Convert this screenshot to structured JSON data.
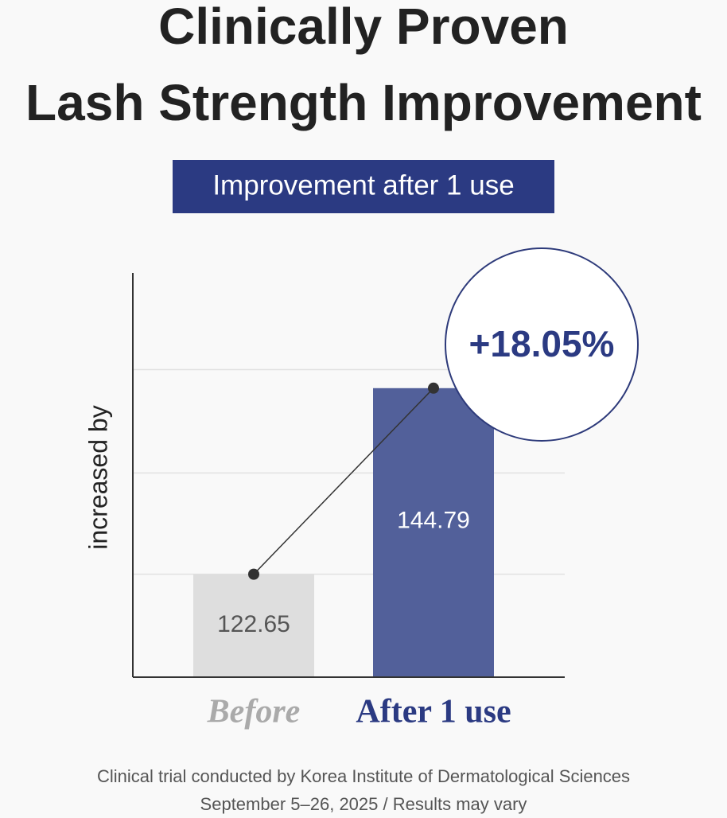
{
  "chart_data": {
    "type": "bar",
    "title": [
      "Clinically Proven",
      "Lash Strength Improvement"
    ],
    "subtitle": "Improvement after 1 use",
    "ylabel": "increased by",
    "categories": [
      "Before",
      "After 1 use"
    ],
    "values": [
      122.65,
      144.79
    ],
    "colors": [
      "#dedede",
      "#52609a"
    ],
    "annotation": "+18.05%",
    "ylim": [
      110.4,
      158.5
    ],
    "yticks": [
      122.65,
      134.7,
      147.0
    ],
    "grid": true,
    "footnote": [
      "Clinical trial conducted by Korea Institute of Dermatological Sciences",
      "September 5–26, 2025 / Results may vary"
    ]
  }
}
